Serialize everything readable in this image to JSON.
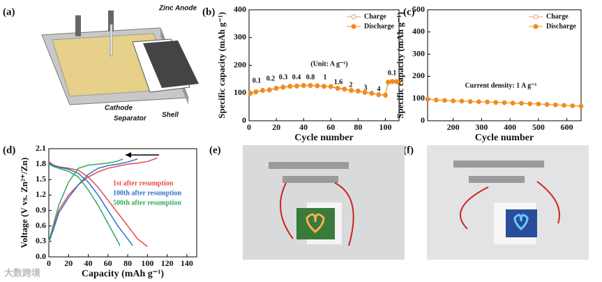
{
  "panels": {
    "a": "(a)",
    "b": "(b)",
    "c": "(c)",
    "d": "(d)",
    "e": "(e)",
    "f": "(f)"
  },
  "diagram": {
    "zinc_anode": "Zinc Anode",
    "cathode": "Cathode",
    "separator": "Separator",
    "shell": "Shell"
  },
  "watermark": "大数跨境",
  "chart_data": [
    {
      "type": "line",
      "xlabel": "Cycle number",
      "ylabel": "Specific capacity (mAh g⁻¹)",
      "xlim": [
        0,
        110
      ],
      "xticks": [
        0,
        20,
        40,
        60,
        80,
        100
      ],
      "ylim": [
        0,
        400
      ],
      "yticks": [
        0,
        100,
        200,
        300,
        400
      ],
      "legend": "upper right",
      "markers": true,
      "x": [
        1,
        5,
        10,
        15,
        20,
        25,
        30,
        35,
        40,
        45,
        50,
        55,
        60,
        65,
        70,
        75,
        80,
        85,
        90,
        95,
        100,
        102,
        105,
        108,
        110
      ],
      "series": [
        {
          "name": "Charge",
          "color": "#f0a050",
          "hollow": true,
          "values": [
            98,
            103,
            108,
            110,
            116,
            120,
            123,
            124,
            126,
            126,
            125,
            123,
            122,
            116,
            113,
            108,
            106,
            101,
            98,
            93,
            91,
            138,
            140,
            140,
            138
          ]
        },
        {
          "name": "Discharge",
          "color": "#f08c1e",
          "hollow": false,
          "values": [
            100,
            105,
            110,
            112,
            118,
            122,
            125,
            126,
            128,
            128,
            127,
            125,
            124,
            118,
            115,
            110,
            108,
            103,
            100,
            95,
            93,
            140,
            142,
            142,
            140
          ]
        }
      ],
      "annotations": [
        "(Unit: A g⁻¹)",
        "0.1",
        "0.2",
        "0.3",
        "0.4",
        "0.8",
        "1",
        "1.6",
        "2",
        "3",
        "4",
        "0.1"
      ]
    },
    {
      "type": "line",
      "xlabel": "Cycle number",
      "ylabel": "Specific capacity (mAh g⁻¹)",
      "xlim": [
        110,
        650
      ],
      "xticks": [
        200,
        300,
        400,
        500,
        600
      ],
      "ylim": [
        0,
        500
      ],
      "yticks": [
        0,
        100,
        200,
        300,
        400,
        500
      ],
      "legend": "upper right",
      "markers": true,
      "x": [
        110,
        140,
        170,
        200,
        230,
        260,
        290,
        320,
        350,
        380,
        410,
        440,
        470,
        500,
        530,
        560,
        590,
        620,
        650
      ],
      "series": [
        {
          "name": "Charge",
          "color": "#f0a050",
          "hollow": true,
          "values": [
            96,
            93,
            91,
            89,
            88,
            86,
            85,
            84,
            82,
            81,
            79,
            78,
            76,
            75,
            73,
            71,
            69,
            67,
            65
          ]
        },
        {
          "name": "Discharge",
          "color": "#f08c1e",
          "hollow": false,
          "values": [
            97,
            94,
            92,
            90,
            89,
            87,
            86,
            85,
            83,
            82,
            80,
            79,
            77,
            76,
            74,
            72,
            70,
            68,
            66
          ]
        }
      ],
      "annotations": [
        "Current density: 1 A g⁻¹"
      ]
    },
    {
      "type": "line",
      "xlabel": "Capacity (mAh g⁻¹)",
      "ylabel": "Voltage (V vs. Zn²⁺/Zn)",
      "xlim": [
        0,
        150
      ],
      "xticks": [
        0,
        20,
        40,
        60,
        80,
        100,
        120,
        140
      ],
      "ylim": [
        0,
        2.1
      ],
      "yticks": [
        {
          "value": 0,
          "label": "0.0"
        },
        0.3,
        0.6,
        0.9,
        1.2,
        1.5,
        1.8,
        2.1
      ],
      "legend": "center right",
      "markers": false,
      "series": [
        {
          "name": "1st after resumption",
          "color": "#e8474a",
          "x": [
            0,
            5,
            10,
            20,
            30,
            40,
            50,
            60,
            70,
            80,
            90,
            100,
            null,
            0,
            5,
            10,
            20,
            30,
            40,
            50,
            60,
            70,
            80,
            90,
            100,
            110
          ],
          "values": [
            1.85,
            1.78,
            1.75,
            1.72,
            1.68,
            1.55,
            1.35,
            1.1,
            0.85,
            0.6,
            0.35,
            0.2,
            null,
            0.3,
            0.6,
            0.9,
            1.2,
            1.4,
            1.55,
            1.65,
            1.72,
            1.76,
            1.8,
            1.82,
            1.85,
            1.92
          ]
        },
        {
          "name": "100th after resumption",
          "color": "#2f6fd0",
          "x": [
            0,
            5,
            10,
            20,
            30,
            40,
            50,
            60,
            70,
            80,
            85,
            null,
            0,
            5,
            10,
            20,
            30,
            40,
            50,
            60,
            70,
            80,
            90
          ],
          "values": [
            1.82,
            1.77,
            1.74,
            1.7,
            1.62,
            1.45,
            1.2,
            0.9,
            0.6,
            0.35,
            0.22,
            null,
            0.28,
            0.55,
            0.85,
            1.15,
            1.4,
            1.6,
            1.72,
            1.77,
            1.8,
            1.84,
            1.9
          ]
        },
        {
          "name": "500th after resumption",
          "color": "#2eaa5a",
          "x": [
            0,
            5,
            10,
            20,
            30,
            40,
            50,
            60,
            70,
            72,
            null,
            0,
            5,
            10,
            20,
            30,
            40,
            50,
            60,
            70,
            75
          ],
          "values": [
            1.8,
            1.75,
            1.72,
            1.66,
            1.55,
            1.3,
            1.0,
            0.65,
            0.3,
            0.22,
            null,
            0.3,
            0.65,
            1.0,
            1.45,
            1.72,
            1.78,
            1.8,
            1.82,
            1.86,
            1.9
          ]
        }
      ]
    }
  ]
}
